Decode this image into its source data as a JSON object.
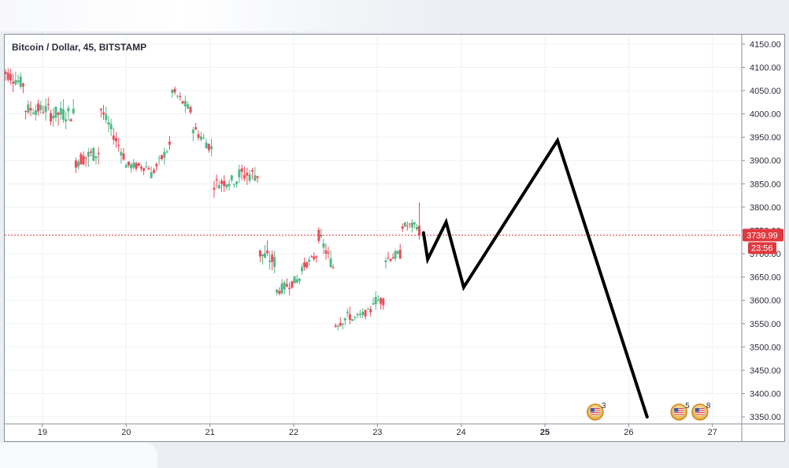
{
  "chart_data": {
    "type": "candlestick",
    "title": "Bitcoin / Dollar, 45, BITSTAMP",
    "x_ticks": [
      "19",
      "20",
      "21",
      "22",
      "23",
      "24",
      "25",
      "26",
      "27"
    ],
    "x_ticks_bold": [
      "25"
    ],
    "y_ticks": [
      4150,
      4100,
      4050,
      4000,
      3950,
      3900,
      3850,
      3800,
      3750,
      3700,
      3650,
      3600,
      3550,
      3500,
      3450,
      3400,
      3350
    ],
    "ylim": [
      3335,
      4170
    ],
    "xlim": [
      18.55,
      27.35
    ],
    "grid": true,
    "colors": {
      "up": "#53b987",
      "down": "#eb4d5c",
      "price_line": "#e0393e",
      "projection": "#000000"
    },
    "current_price": {
      "value": 3739.99,
      "label": "3739.99",
      "countdown": "23:56"
    },
    "candles": [
      {
        "x": 18.5,
        "o": 4105,
        "h": 4110,
        "l": 4040,
        "c": 4095
      },
      {
        "x": 18.8,
        "o": 4060,
        "h": 4120,
        "l": 3970,
        "c": 4010
      },
      {
        "x": 19.1,
        "o": 4010,
        "h": 4070,
        "l": 3960,
        "c": 4000
      },
      {
        "x": 19.4,
        "o": 4000,
        "h": 4040,
        "l": 3850,
        "c": 3900
      },
      {
        "x": 19.7,
        "o": 3920,
        "h": 4040,
        "l": 3900,
        "c": 4010
      },
      {
        "x": 20.0,
        "o": 3900,
        "h": 3940,
        "l": 3870,
        "c": 3890
      },
      {
        "x": 20.3,
        "o": 3885,
        "h": 3920,
        "l": 3820,
        "c": 3870
      },
      {
        "x": 20.55,
        "o": 3940,
        "h": 4050,
        "l": 3930,
        "c": 4050
      },
      {
        "x": 20.8,
        "o": 4000,
        "h": 4010,
        "l": 3960,
        "c": 3970
      },
      {
        "x": 21.05,
        "o": 3920,
        "h": 3950,
        "l": 3810,
        "c": 3850
      },
      {
        "x": 21.35,
        "o": 3860,
        "h": 3910,
        "l": 3840,
        "c": 3870
      },
      {
        "x": 21.6,
        "o": 3870,
        "h": 3875,
        "l": 3690,
        "c": 3700
      },
      {
        "x": 21.8,
        "o": 3680,
        "h": 3700,
        "l": 3580,
        "c": 3620
      },
      {
        "x": 22.1,
        "o": 3650,
        "h": 3690,
        "l": 3600,
        "c": 3670
      },
      {
        "x": 22.3,
        "o": 3700,
        "h": 3760,
        "l": 3690,
        "c": 3740
      },
      {
        "x": 22.5,
        "o": 3660,
        "h": 3670,
        "l": 3530,
        "c": 3550
      },
      {
        "x": 22.7,
        "o": 3570,
        "h": 3600,
        "l": 3520,
        "c": 3560
      },
      {
        "x": 22.95,
        "o": 3580,
        "h": 3620,
        "l": 3560,
        "c": 3600
      },
      {
        "x": 23.1,
        "o": 3600,
        "h": 3700,
        "l": 3580,
        "c": 3690
      },
      {
        "x": 23.3,
        "o": 3700,
        "h": 3780,
        "l": 3690,
        "c": 3760
      },
      {
        "x": 23.5,
        "o": 3760,
        "h": 3810,
        "l": 3730,
        "c": 3740
      }
    ],
    "projection_path": [
      {
        "x": 23.55,
        "y": 3745
      },
      {
        "x": 23.6,
        "y": 3688
      },
      {
        "x": 23.82,
        "y": 3768
      },
      {
        "x": 24.03,
        "y": 3628
      },
      {
        "x": 25.15,
        "y": 3943
      },
      {
        "x": 26.22,
        "y": 3350
      }
    ],
    "event_markers": [
      {
        "x": 25.6,
        "count": "3"
      },
      {
        "x": 26.6,
        "count": "5"
      },
      {
        "x": 26.85,
        "count": "8"
      }
    ]
  }
}
